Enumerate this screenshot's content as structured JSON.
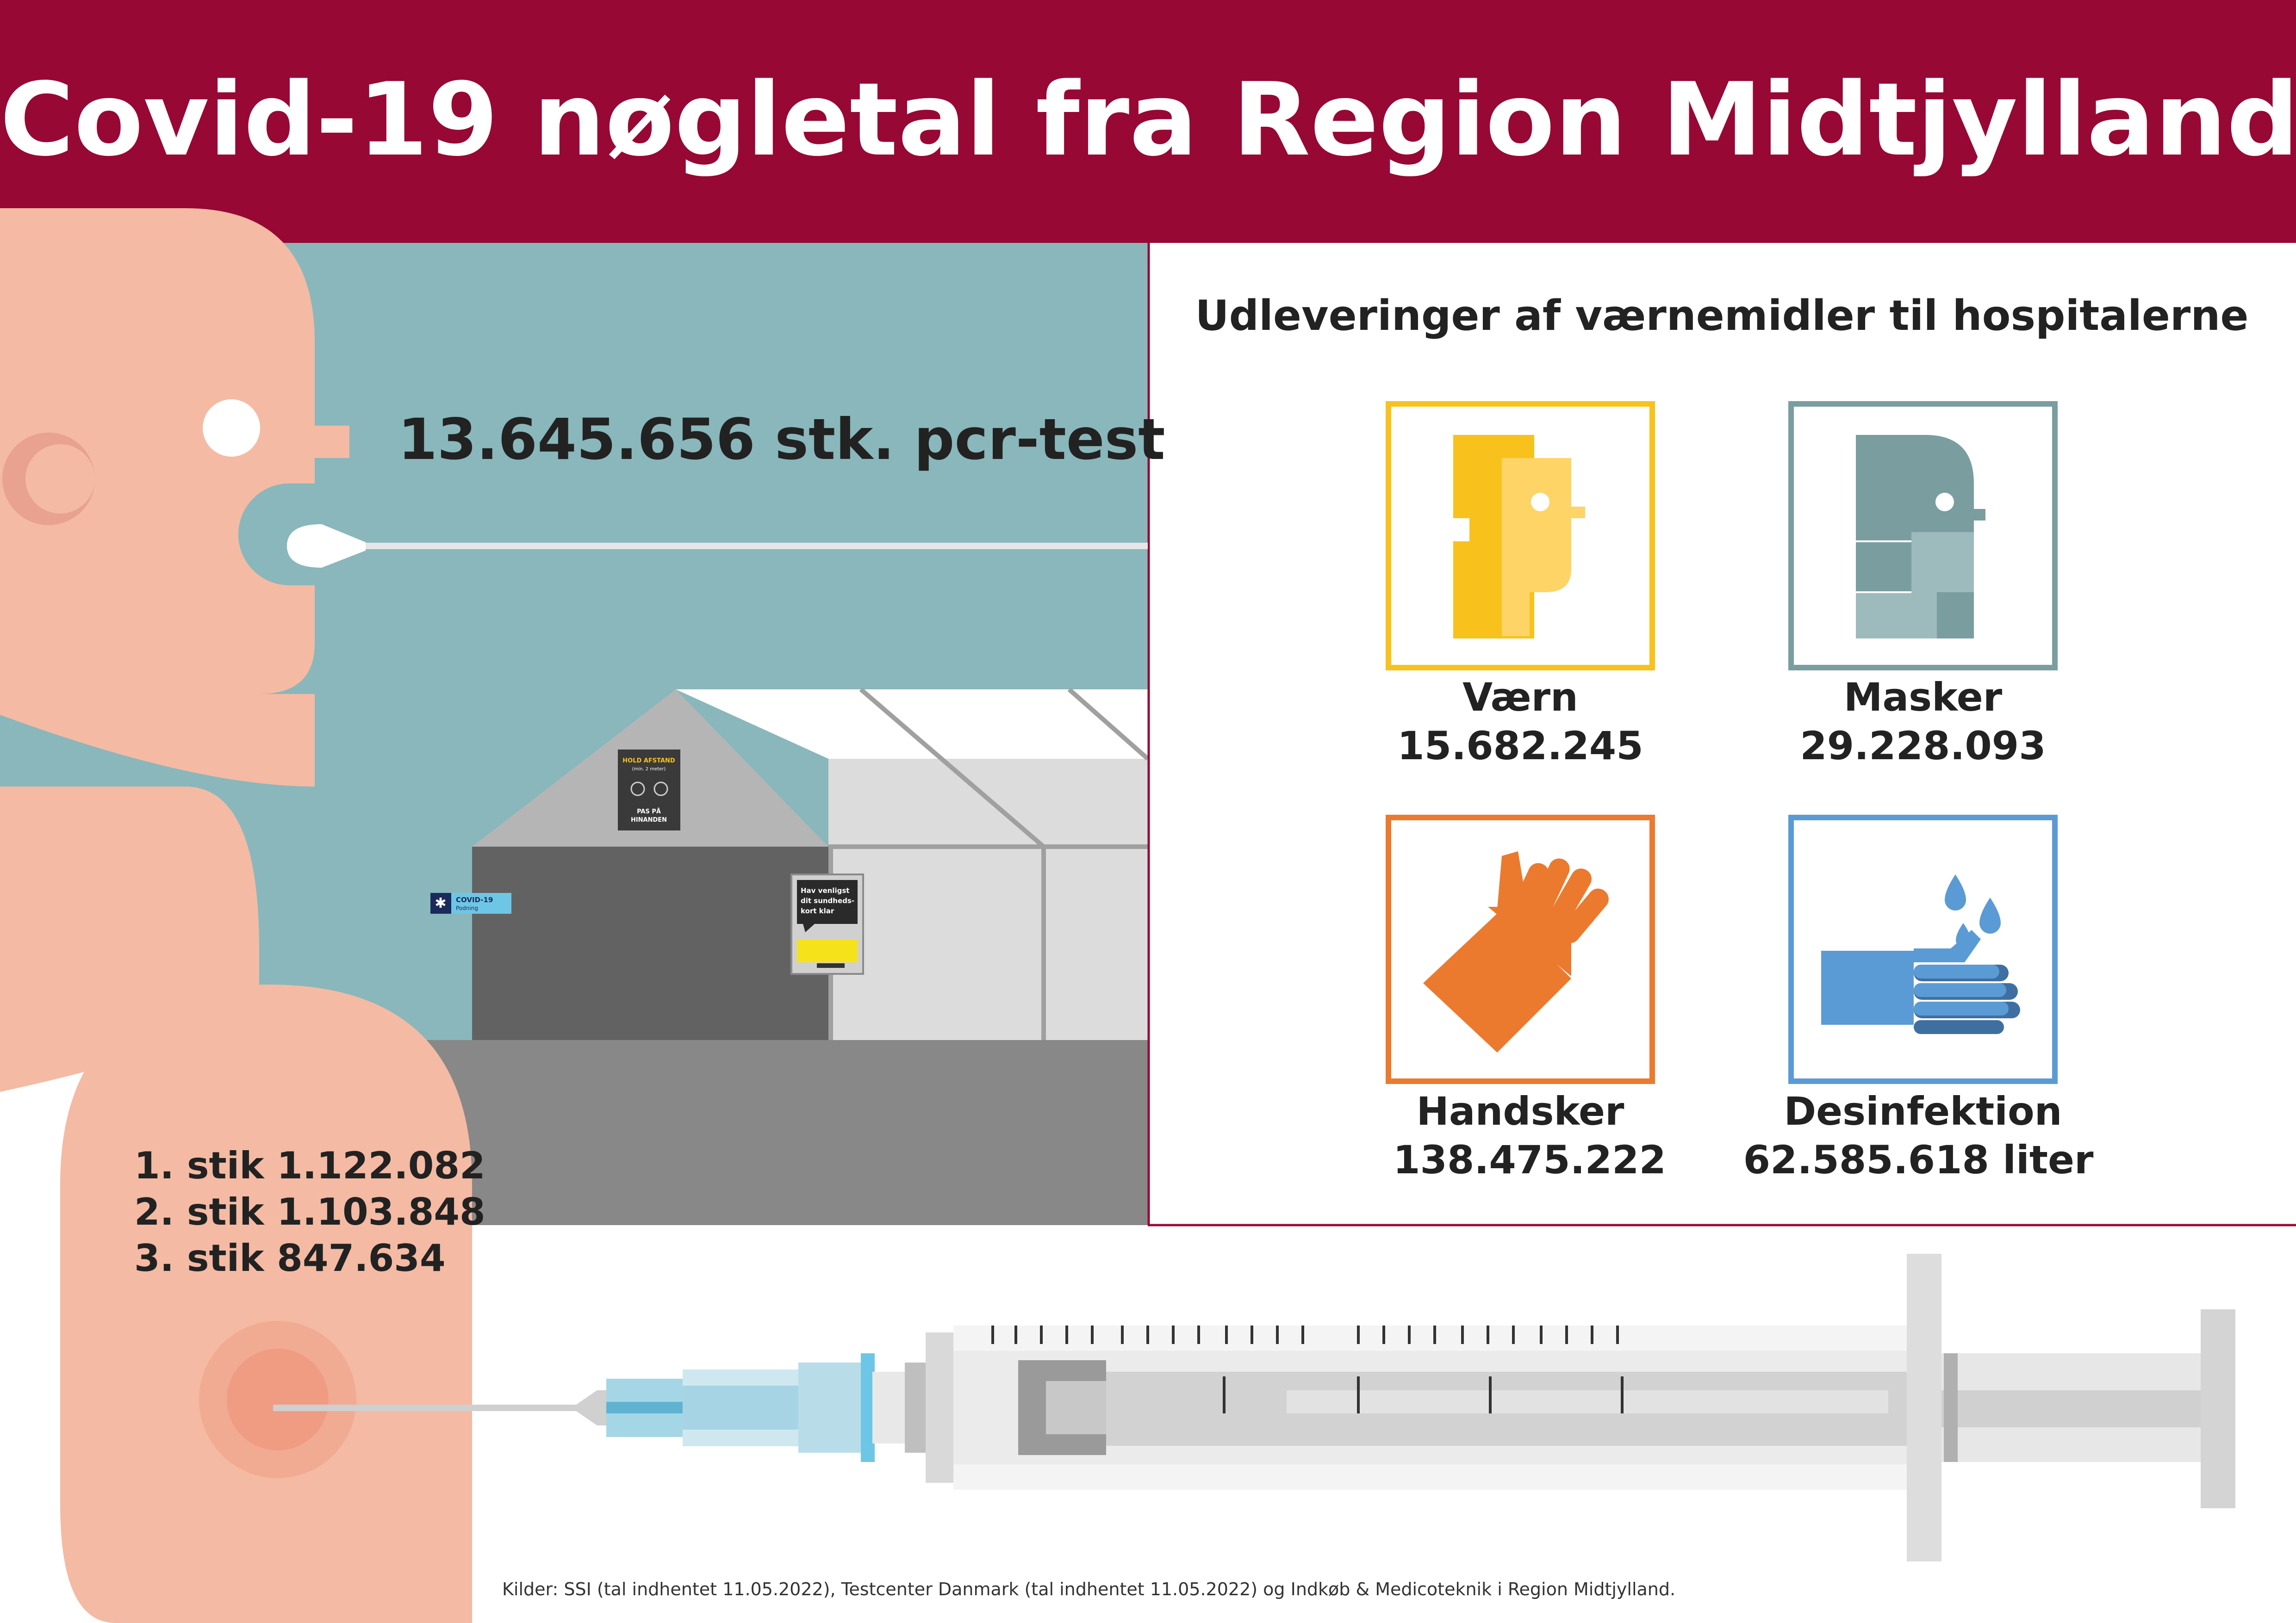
{
  "header": {
    "title": "Covid-19 nøgletal fra Region Midtjylland",
    "color": "#970835"
  },
  "pcr": {
    "text": "13.645.656 stk. pcr-test"
  },
  "tent": {
    "sign_distance": [
      "HOLD AFSTAND",
      "(min. 2 meter)",
      "PAS PÅ",
      "HINANDEN"
    ],
    "sign_testing": [
      "COVID-19",
      "Podning"
    ],
    "sign_card": [
      "Hav venligst",
      "dit sundheds-",
      "kort klar"
    ]
  },
  "ppe": {
    "title": "Udleveringer af værnemidler til hospitalerne",
    "items": [
      {
        "name": "Værn",
        "value": "15.682.245",
        "color": "#f9c11c",
        "icon": "face-shield-icon"
      },
      {
        "name": "Masker",
        "value": "29.228.093",
        "color": "#7a9da0",
        "icon": "face-mask-icon"
      },
      {
        "name": "Handsker",
        "value": "138.475.222",
        "color": "#ec7a2e",
        "icon": "glove-icon"
      },
      {
        "name": "Desinfektion",
        "value": "62.585.618 liter",
        "color": "#5b9bd5",
        "icon": "hand-sanitizer-icon"
      }
    ]
  },
  "vaccines": {
    "doses": [
      {
        "dose": "1. stik",
        "count": "1.122.082"
      },
      {
        "dose": "2. stik",
        "count": "1.103.848"
      },
      {
        "dose": "3. stik",
        "count": "847.634"
      }
    ]
  },
  "footer": {
    "sources": "Kilder: SSI (tal indhentet 11.05.2022), Testcenter Danmark (tal indhentet 11.05.2022) og Indkøb & Medicoteknik i Region Midtjylland."
  }
}
